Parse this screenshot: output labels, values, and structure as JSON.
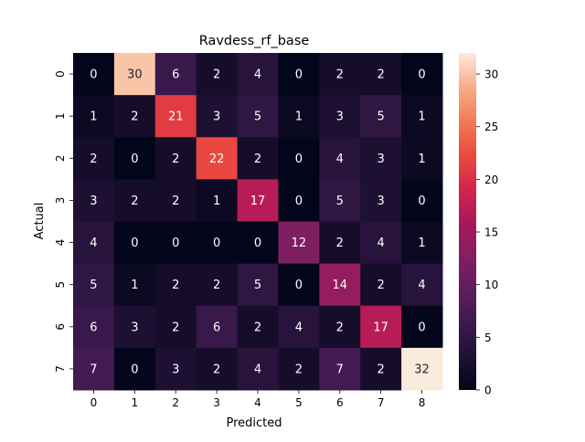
{
  "chart_data": {
    "type": "heatmap",
    "title": "Ravdess_rf_base",
    "xlabel": "Predicted",
    "ylabel": "Actual",
    "x_categories": [
      "0",
      "1",
      "2",
      "3",
      "4",
      "5",
      "6",
      "7",
      "8"
    ],
    "y_categories": [
      "0",
      "1",
      "2",
      "3",
      "4",
      "5",
      "6",
      "7"
    ],
    "values": [
      [
        0,
        30,
        6,
        2,
        4,
        0,
        2,
        2,
        0
      ],
      [
        1,
        2,
        21,
        3,
        5,
        1,
        3,
        5,
        1
      ],
      [
        2,
        0,
        2,
        22,
        2,
        0,
        4,
        3,
        1
      ],
      [
        3,
        2,
        2,
        1,
        17,
        0,
        5,
        3,
        0
      ],
      [
        4,
        0,
        0,
        0,
        0,
        12,
        2,
        4,
        1
      ],
      [
        5,
        1,
        2,
        2,
        5,
        0,
        14,
        2,
        4
      ],
      [
        6,
        3,
        2,
        6,
        2,
        4,
        2,
        17,
        0
      ],
      [
        7,
        0,
        3,
        2,
        4,
        2,
        7,
        2,
        32
      ]
    ],
    "colorbar": {
      "min": 0,
      "max": 32,
      "ticks": [
        "0",
        "5",
        "10",
        "15",
        "20",
        "25",
        "30"
      ]
    },
    "colormap": "rocket",
    "annotate": true
  }
}
